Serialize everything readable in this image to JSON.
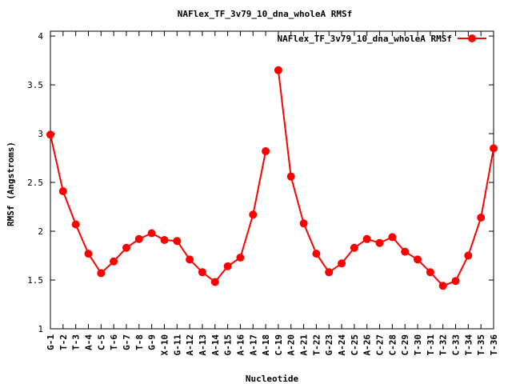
{
  "chart_data": {
    "type": "line",
    "title": "NAFlex_TF_3v79_10_dna_wholeA RMSf",
    "xlabel": "Nucleotide",
    "ylabel": "RMSf (Angstroms)",
    "ylim": [
      1,
      4.05
    ],
    "yticks": [
      "1",
      "1.5",
      "2",
      "2.5",
      "3",
      "3.5",
      "4"
    ],
    "grid": false,
    "legend_position": "top-right",
    "series_color": "#ff0000",
    "categories": [
      "G-1",
      "T-2",
      "T-3",
      "A-4",
      "C-5",
      "T-6",
      "G-7",
      "T-8",
      "G-9",
      "X-10",
      "G-11",
      "A-12",
      "A-13",
      "A-14",
      "G-15",
      "A-16",
      "A-17",
      "A-18",
      "C-19",
      "A-20",
      "A-21",
      "T-22",
      "G-23",
      "A-24",
      "C-25",
      "A-26",
      "C-27",
      "C-28",
      "C-29",
      "T-30",
      "T-31",
      "T-32",
      "C-33",
      "T-34",
      "T-35",
      "T-36"
    ],
    "series": [
      {
        "name": "NAFlex_TF_3v79_10_dna_wholeA RMSf",
        "segments": [
          {
            "x": [
              1,
              2,
              3,
              4,
              5,
              6,
              7,
              8,
              9,
              10,
              11,
              12,
              13,
              14,
              15,
              16,
              17,
              18
            ],
            "y": [
              2.99,
              2.41,
              2.07,
              1.77,
              1.57,
              1.69,
              1.83,
              1.92,
              1.98,
              1.91,
              1.9,
              1.71,
              1.58,
              1.48,
              1.64,
              1.73,
              2.17,
              2.82
            ]
          },
          {
            "x": [
              19,
              20,
              21,
              22,
              23,
              24,
              25,
              26,
              27,
              28,
              29,
              30,
              31,
              32,
              33,
              34,
              35,
              36
            ],
            "y": [
              3.65,
              2.56,
              2.08,
              1.77,
              1.58,
              1.67,
              1.83,
              1.92,
              1.88,
              1.94,
              1.79,
              1.71,
              1.58,
              1.44,
              1.49,
              1.75,
              2.14,
              2.85
            ]
          }
        ]
      }
    ]
  }
}
